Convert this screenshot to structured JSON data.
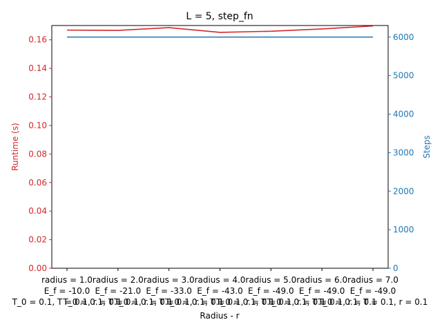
{
  "chart_data": {
    "type": "line",
    "title": "L = 5, step_fn",
    "xlabel": "Radius - r",
    "ylabel_left": "Runtime (s)",
    "ylabel_right": "Steps",
    "categories": [
      [
        "radius = 1.0",
        "E_f = -10.0",
        "T_0 = 0.1, T = 0.1, r = 0.1"
      ],
      [
        "radius = 2.0",
        "E_f = -21.0",
        "T_0 = 0.1, T = 0.1, r = 0.1"
      ],
      [
        "radius = 3.0",
        "E_f = -33.0",
        "T_0 = 0.1, T = 0.1, r = 0.1"
      ],
      [
        "radius = 4.0",
        "E_f = -43.0",
        "T_0 = 0.1, T = 0.1, r = 0.1"
      ],
      [
        "radius = 5.0",
        "E_f = -49.0",
        "T_0 = 0.1, T = 0.1, r = 0.1"
      ],
      [
        "radius = 6.0",
        "E_f = -49.0",
        "T_0 = 0.1, T = 0.1, r = 0.1"
      ],
      [
        "radius = 7.0",
        "E_f = -49.0",
        "T_0 = 0.1, T = 0.1, r = 0.1"
      ]
    ],
    "series": [
      {
        "values": [
          0.1668,
          0.1666,
          0.1685,
          0.1652,
          0.166,
          0.1676,
          0.1697
        ],
        "axis": "left",
        "color": "#d62728"
      },
      {
        "values": [
          6000,
          6000,
          6000,
          6000,
          6000,
          6000,
          6000
        ],
        "axis": "right",
        "color": "#1f77b4"
      }
    ],
    "ylim_left": [
      0,
      0.17
    ],
    "yticks_left": [
      "0.00",
      "0.02",
      "0.04",
      "0.06",
      "0.08",
      "0.10",
      "0.12",
      "0.14",
      "0.16"
    ],
    "ylim_right": [
      0,
      6300
    ],
    "yticks_right": [
      "0",
      "1000",
      "2000",
      "3000",
      "4000",
      "5000",
      "6000"
    ],
    "grid": false,
    "left_axis_color": "#d62728",
    "right_axis_color": "#1f77b4"
  }
}
